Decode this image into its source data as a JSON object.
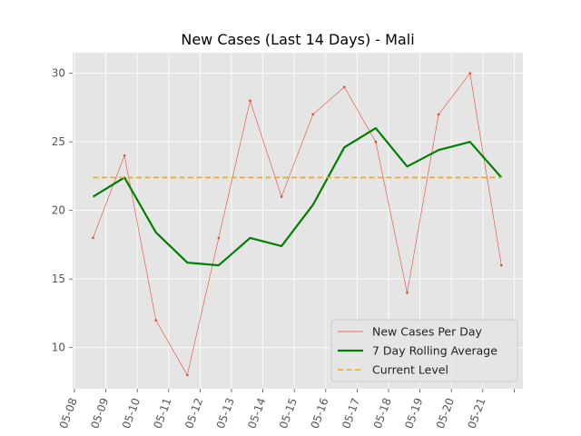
{
  "chart_data": {
    "type": "line",
    "title": "New Cases (Last 14 Days) - Mali",
    "xlabel": "",
    "ylabel": "",
    "x_tick_labels": [
      "05-08",
      "05-09",
      "05-10",
      "05-11",
      "05-12",
      "05-13",
      "05-14",
      "05-15",
      "05-16",
      "05-17",
      "05-18",
      "05-19",
      "05-20",
      "05-21"
    ],
    "y_ticks": [
      10,
      15,
      20,
      25,
      30
    ],
    "ylim": [
      7,
      31.5
    ],
    "grid": true,
    "legend_position": "lower-right",
    "series": [
      {
        "name": "New Cases Per Day",
        "color": "#E24A33",
        "style": "thin-line-with-points",
        "values": [
          18,
          24,
          12,
          8,
          18,
          28,
          21,
          27,
          29,
          25,
          14,
          27,
          30,
          16
        ]
      },
      {
        "name": "7 Day Rolling Average",
        "color": "#008000",
        "style": "thick-line",
        "values": [
          21.0,
          22.4,
          18.4,
          16.2,
          16.0,
          18.0,
          17.4,
          20.4,
          24.6,
          26.0,
          23.2,
          24.4,
          25.0,
          22.4
        ]
      },
      {
        "name": "Current Level",
        "color": "#FFA500",
        "style": "dashed-line",
        "values": [
          22.4,
          22.4,
          22.4,
          22.4,
          22.4,
          22.4,
          22.4,
          22.4,
          22.4,
          22.4,
          22.4,
          22.4,
          22.4,
          22.4
        ]
      }
    ]
  }
}
